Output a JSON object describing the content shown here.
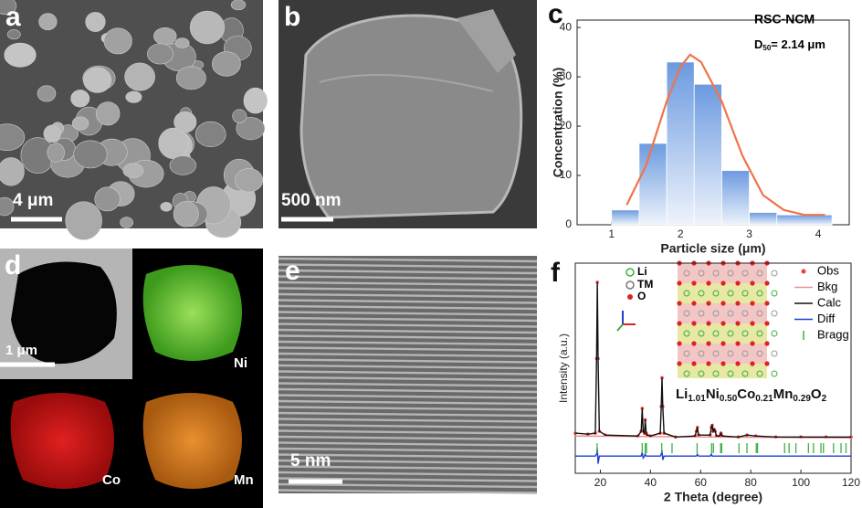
{
  "panels": {
    "a": {
      "label": "a",
      "scale_bar": "4 μm"
    },
    "b": {
      "label": "b",
      "scale_bar": "500 nm"
    },
    "c": {
      "label": "c"
    },
    "d": {
      "label": "d",
      "scale_bar": "1 μm",
      "maps": [
        "Ni",
        "Co",
        "Mn"
      ]
    },
    "e": {
      "label": "e",
      "scale_bar": "5 nm"
    },
    "f": {
      "label": "f",
      "structure_legend": [
        "Li",
        "TM",
        "O"
      ],
      "formula": [
        "Li",
        "1.01",
        "Ni",
        "0.50",
        "Co",
        "0.21",
        "Mn",
        "0.29",
        "O",
        "2"
      ]
    }
  },
  "chart_data": [
    {
      "type": "histogram",
      "annotations": [
        "RSC-NCM",
        "D",
        "50",
        "= 2.14 μm"
      ],
      "x_label": "Particle size (μm)",
      "y_label": "Concentration (%)",
      "bins": [
        1.0,
        1.4,
        1.8,
        2.2,
        2.6,
        3.0,
        3.4,
        4.2
      ],
      "values": [
        3,
        16.5,
        33,
        28.5,
        11,
        2.5,
        2
      ],
      "color": "#6b9ae0",
      "line": {
        "x": [
          1.22,
          1.5,
          1.8,
          2.0,
          2.14,
          2.3,
          2.6,
          2.9,
          3.2,
          3.5,
          3.8,
          4.1
        ],
        "values": [
          4,
          12,
          25,
          32,
          34.5,
          33,
          25,
          14,
          6,
          3,
          2,
          2
        ],
        "color": "#f0744a"
      },
      "xlim": [
        0.5,
        4.45
      ],
      "ylim": [
        0,
        41.5
      ],
      "xticks": [
        1,
        2,
        3,
        4
      ],
      "yticks": [
        0,
        10,
        20,
        30,
        40
      ]
    },
    {
      "type": "line",
      "x_label": "2 Theta (degree)",
      "y_label": "Intensity (a.u.)",
      "xlim": [
        10,
        120
      ],
      "ylim": [
        0,
        110
      ],
      "xticks": [
        20,
        40,
        60,
        80,
        100,
        120
      ],
      "x": [
        10,
        15,
        18,
        18.5,
        18.8,
        19.1,
        19.6,
        22,
        35,
        36.3,
        36.7,
        37.1,
        37.6,
        37.9,
        38.3,
        38.7,
        40,
        43.9,
        44.3,
        44.6,
        44.9,
        45.4,
        50,
        57.8,
        58.3,
        58.7,
        59.2,
        63.8,
        64.3,
        64.6,
        65,
        65.4,
        65.8,
        66.3,
        67.6,
        68.1,
        68.6,
        75,
        78.5,
        82,
        90,
        100,
        110,
        120
      ],
      "series": [
        {
          "name": "Obs",
          "color": "#e8413c",
          "style": "markers",
          "values": [
            21,
            20.5,
            21,
            60,
            100,
            60,
            22,
            20,
            19.5,
            22,
            34,
            22,
            21,
            28,
            21,
            20,
            19.5,
            21,
            35,
            50,
            35,
            21,
            19,
            19.5,
            22,
            24,
            20,
            20,
            24,
            25,
            22,
            23,
            22,
            19.5,
            19.5,
            21,
            19.5,
            19,
            20,
            19.5,
            19,
            19,
            19,
            19
          ]
        },
        {
          "name": "Bkg",
          "color": "#f08a8a",
          "style": "line",
          "x": [
            10,
            120
          ],
          "values": [
            19.5,
            18.5
          ]
        },
        {
          "name": "Calc",
          "color": "#111111",
          "style": "line",
          "values": [
            21,
            20.5,
            21,
            60,
            100,
            60,
            22,
            20,
            19.5,
            22,
            34,
            22,
            21,
            28,
            21,
            20,
            19.5,
            21,
            35,
            50,
            35,
            21,
            19,
            19.5,
            22,
            24,
            20,
            20,
            24,
            25,
            22,
            23,
            22,
            19.5,
            19.5,
            21,
            19.5,
            19,
            20,
            19.5,
            19,
            19,
            19,
            19
          ]
        },
        {
          "name": "Diff",
          "color": "#1f3fd6",
          "style": "line",
          "values": [
            9,
            9,
            9,
            10,
            13,
            5,
            9,
            9,
            9,
            9,
            11,
            8,
            9,
            10,
            9,
            9,
            9,
            9,
            10,
            12,
            7,
            9,
            9,
            9,
            9,
            10,
            9,
            9,
            10,
            9,
            9,
            9,
            9,
            9,
            9,
            9,
            9,
            9,
            9,
            9,
            9,
            9,
            9,
            9
          ]
        },
        {
          "name": "Bragg",
          "color": "#3cb043",
          "style": "ticks",
          "x": [
            18.7,
            36.7,
            37.9,
            38.4,
            44.5,
            48.6,
            58.6,
            64.4,
            65.1,
            68.0,
            68.4,
            75.3,
            78.5,
            82.2,
            82.7,
            93.5,
            95.3,
            98.0,
            103.0,
            105.0,
            108.0,
            109.0,
            113.0,
            116.0,
            118.0
          ]
        }
      ]
    }
  ]
}
